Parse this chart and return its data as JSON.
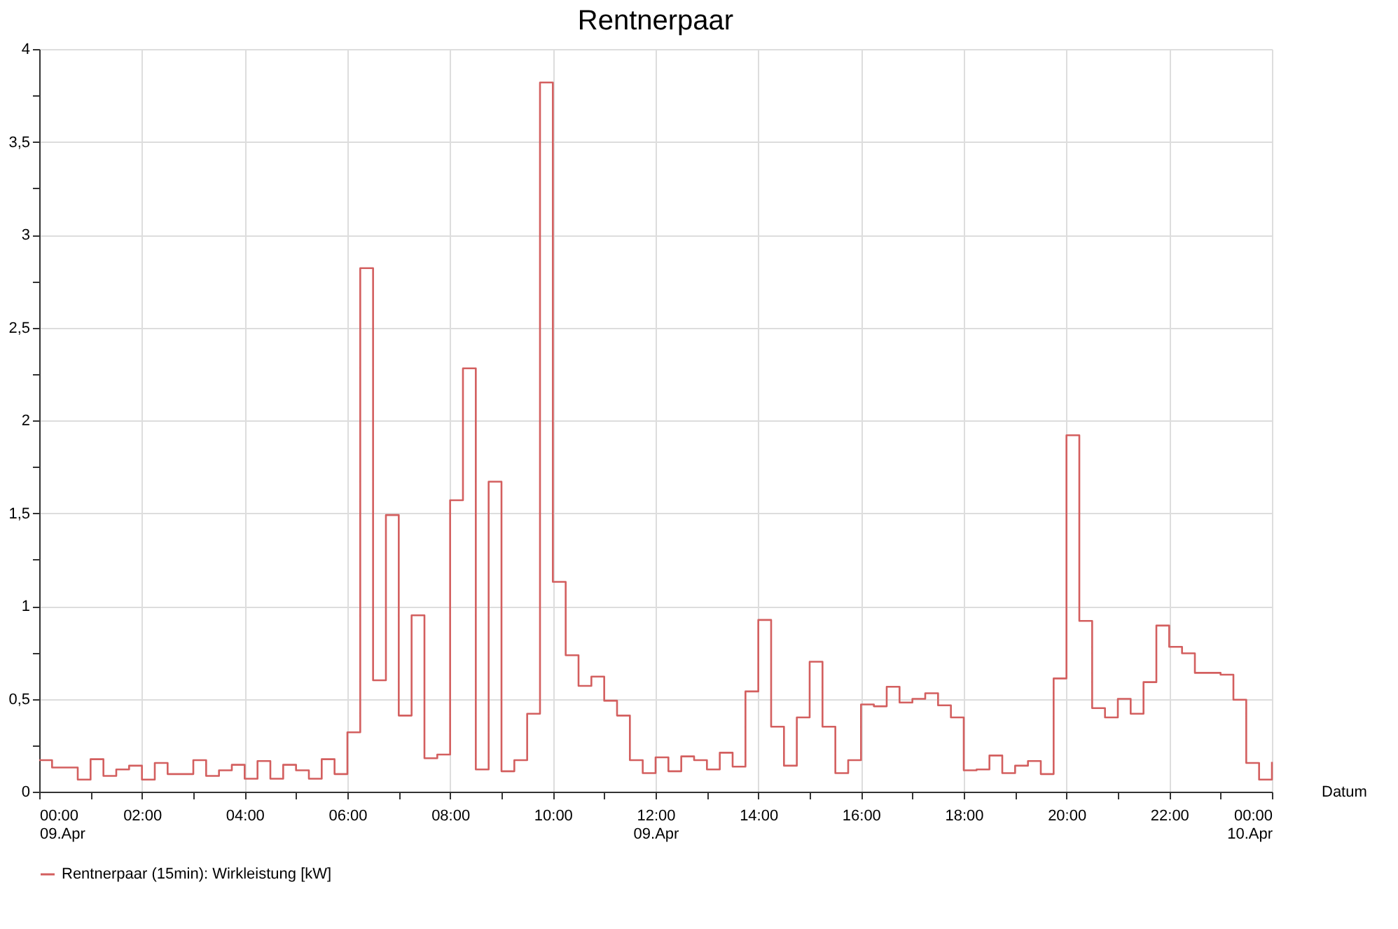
{
  "chart_data": {
    "type": "step",
    "title": "Rentnerpaar",
    "xlabel": "Datum",
    "x": [
      0,
      0.25,
      0.5,
      0.75,
      1,
      1.25,
      1.5,
      1.75,
      2,
      2.25,
      2.5,
      2.75,
      3,
      3.25,
      3.5,
      3.75,
      4,
      4.25,
      4.5,
      4.75,
      5,
      5.25,
      5.5,
      5.75,
      6,
      6.25,
      6.5,
      6.75,
      7,
      7.25,
      7.5,
      7.75,
      8,
      8.25,
      8.5,
      8.75,
      9,
      9.25,
      9.5,
      9.75,
      10,
      10.25,
      10.5,
      10.75,
      11,
      11.25,
      11.5,
      11.75,
      12,
      12.25,
      12.5,
      12.75,
      13,
      13.25,
      13.5,
      13.75,
      14,
      14.25,
      14.5,
      14.75,
      15,
      15.25,
      15.5,
      15.75,
      16,
      16.25,
      16.5,
      16.75,
      17,
      17.25,
      17.5,
      17.75,
      18,
      18.25,
      18.5,
      18.75,
      19,
      19.25,
      19.5,
      19.75,
      20,
      20.25,
      20.5,
      20.75,
      21,
      21.25,
      21.5,
      21.75,
      22,
      22.25,
      22.5,
      22.75,
      23,
      23.25,
      23.5,
      23.75,
      24
    ],
    "series": [
      {
        "name": "Rentnerpaar (15min): Wirkleistung [kW]",
        "color": "#d35f5f",
        "values": [
          0.17,
          0.13,
          0.13,
          0.065,
          0.175,
          0.085,
          0.12,
          0.14,
          0.065,
          0.155,
          0.095,
          0.095,
          0.17,
          0.085,
          0.115,
          0.145,
          0.07,
          0.165,
          0.07,
          0.145,
          0.115,
          0.07,
          0.175,
          0.095,
          0.32,
          2.82,
          0.6,
          1.49,
          0.41,
          0.95,
          0.18,
          0.2,
          1.57,
          2.28,
          0.12,
          1.67,
          0.11,
          0.17,
          0.42,
          3.82,
          1.13,
          0.735,
          0.57,
          0.62,
          0.49,
          0.41,
          0.17,
          0.1,
          0.185,
          0.11,
          0.19,
          0.17,
          0.12,
          0.21,
          0.135,
          0.54,
          0.925,
          0.35,
          0.14,
          0.4,
          0.7,
          0.35,
          0.1,
          0.17,
          0.47,
          0.46,
          0.565,
          0.48,
          0.5,
          0.53,
          0.465,
          0.4,
          0.115,
          0.12,
          0.195,
          0.1,
          0.14,
          0.165,
          0.095,
          0.61,
          1.92,
          0.92,
          0.45,
          0.4,
          0.5,
          0.42,
          0.59,
          0.895,
          0.78,
          0.745,
          0.64,
          0.64,
          0.63,
          0.495,
          0.155,
          0.065,
          0.16
        ]
      }
    ],
    "xlim": [
      0,
      24
    ],
    "xticks": [
      {
        "value": 0,
        "label": "00:00\n09.Apr"
      },
      {
        "value": 1,
        "label": null
      },
      {
        "value": 2,
        "label": "02:00"
      },
      {
        "value": 3,
        "label": null
      },
      {
        "value": 4,
        "label": "04:00"
      },
      {
        "value": 5,
        "label": null
      },
      {
        "value": 6,
        "label": "06:00"
      },
      {
        "value": 7,
        "label": null
      },
      {
        "value": 8,
        "label": "08:00"
      },
      {
        "value": 9,
        "label": null
      },
      {
        "value": 10,
        "label": "10:00"
      },
      {
        "value": 11,
        "label": null
      },
      {
        "value": 12,
        "label": "12:00\n09.Apr"
      },
      {
        "value": 13,
        "label": null
      },
      {
        "value": 14,
        "label": "14:00"
      },
      {
        "value": 15,
        "label": null
      },
      {
        "value": 16,
        "label": "16:00"
      },
      {
        "value": 17,
        "label": null
      },
      {
        "value": 18,
        "label": "18:00"
      },
      {
        "value": 19,
        "label": null
      },
      {
        "value": 20,
        "label": "20:00"
      },
      {
        "value": 21,
        "label": null
      },
      {
        "value": 22,
        "label": "22:00"
      },
      {
        "value": 23,
        "label": null
      },
      {
        "value": 24,
        "label": "00:00\n10.Apr"
      }
    ],
    "ylim": [
      0,
      4
    ],
    "yticks": [
      0,
      {
        "value": 0.25,
        "label": null
      },
      {
        "value": 0.5,
        "label": "0,5"
      },
      {
        "value": 0.75,
        "label": null
      },
      1,
      {
        "value": 1.25,
        "label": null
      },
      {
        "value": 1.5,
        "label": "1,5"
      },
      {
        "value": 1.75,
        "label": null
      },
      2,
      {
        "value": 2.25,
        "label": null
      },
      {
        "value": 2.5,
        "label": "2,5"
      },
      {
        "value": 2.75,
        "label": null
      },
      3,
      {
        "value": 3.25,
        "label": null
      },
      {
        "value": 3.5,
        "label": "3,5"
      },
      {
        "value": 3.75,
        "label": null
      },
      4
    ],
    "grid": true,
    "legend": "bottom left",
    "line_style": "solid",
    "marker": "none"
  }
}
